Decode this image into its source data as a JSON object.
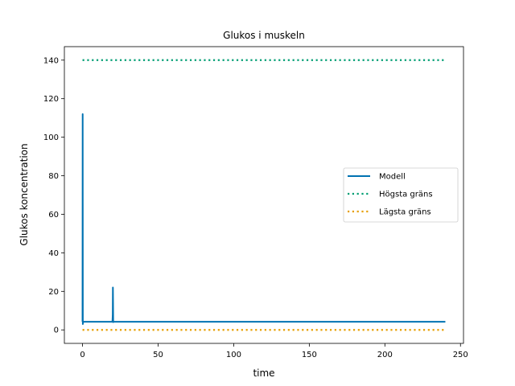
{
  "chart_data": {
    "type": "line",
    "title": "Glukos i muskeln",
    "xlabel": "time",
    "ylabel": "Glukos koncentration",
    "xlim": [
      -12,
      252
    ],
    "ylim": [
      -7,
      147
    ],
    "xticks": [
      0,
      50,
      100,
      150,
      200,
      250
    ],
    "yticks": [
      0,
      20,
      40,
      60,
      80,
      100,
      120,
      140
    ],
    "grid": false,
    "legend_position": "center-right",
    "series": [
      {
        "name": "Modell",
        "color": "#0072B2",
        "style": "solid",
        "x": [
          0,
          0.1,
          0.2,
          0.4,
          0.6,
          1,
          19.8,
          20,
          20.1,
          20.3,
          20.6,
          21,
          240
        ],
        "y": [
          4.2,
          112,
          3,
          4.2,
          4.2,
          4.2,
          4.2,
          8,
          22,
          4,
          4.2,
          4.2,
          4.2
        ]
      },
      {
        "name": "Högsta gräns",
        "color": "#009E73",
        "style": "dotted",
        "x": [
          0,
          240
        ],
        "y": [
          140,
          140
        ]
      },
      {
        "name": "Lägsta gräns",
        "color": "#E69F00",
        "style": "dotted",
        "x": [
          0,
          240
        ],
        "y": [
          0,
          0
        ]
      }
    ]
  }
}
